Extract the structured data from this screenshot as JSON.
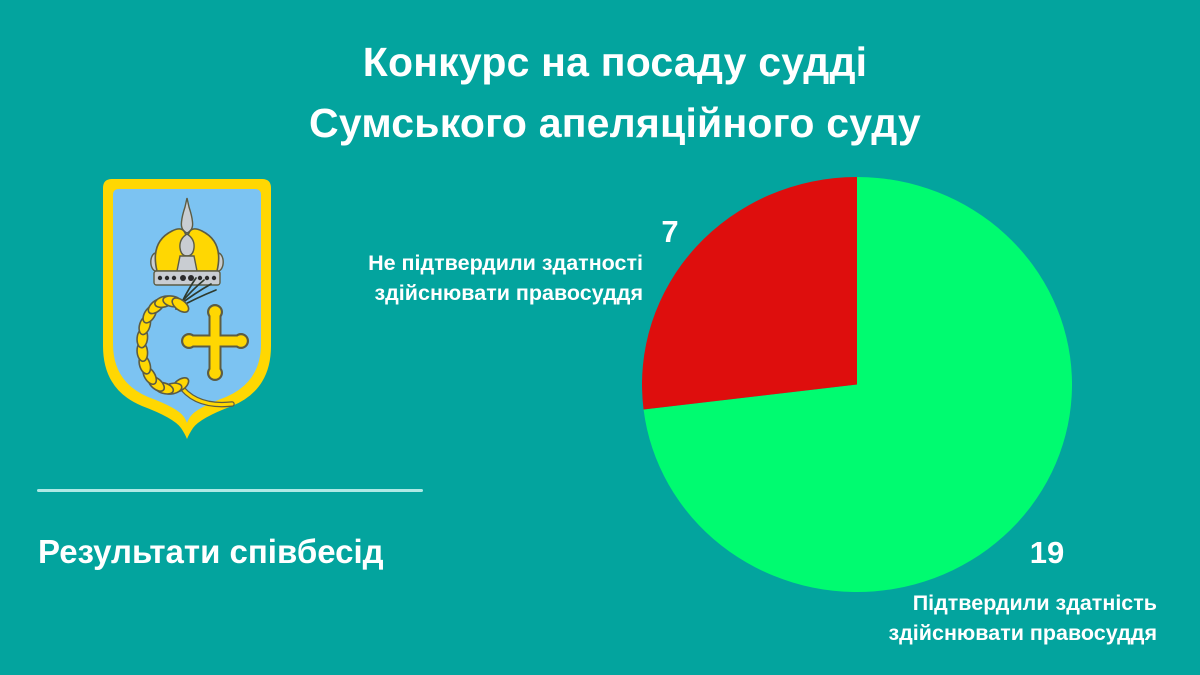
{
  "page": {
    "background_color": "#03a49e",
    "divider_color": "#aee9e5",
    "title": {
      "line1": "Конкурс на посаду судді",
      "line2": "Сумського апеляційного суду"
    },
    "subtitle": "Результати співбесід"
  },
  "emblem": {
    "name": "coat-of-arms-sumy-oblast",
    "colors": {
      "field": "#7cc3f2",
      "gold": "#ffd702",
      "silver": "#c9cdd2",
      "outline": "#5c5c44",
      "dots": "#2b2b2b",
      "awns": "#2e3a2e"
    }
  },
  "chart_data": {
    "type": "pie",
    "title": "Результати співбесід",
    "categories": [
      "Підтвердили здатність здійснювати правосуддя",
      "Не підтвердили здатності здійснювати правосуддя"
    ],
    "values": [
      19,
      7
    ],
    "total": 26,
    "colors": [
      "#00fb70",
      "#de0e0d"
    ],
    "start_angle_deg": 0,
    "direction": "clockwise",
    "legend_position": "outside-data-labels",
    "labels": [
      {
        "value": "19",
        "lines": [
          "Підтвердили здатність",
          "здійснювати правосуддя"
        ]
      },
      {
        "value": "7",
        "lines": [
          "Не підтвердили здатності",
          "здійснювати правосуддя"
        ]
      }
    ]
  }
}
